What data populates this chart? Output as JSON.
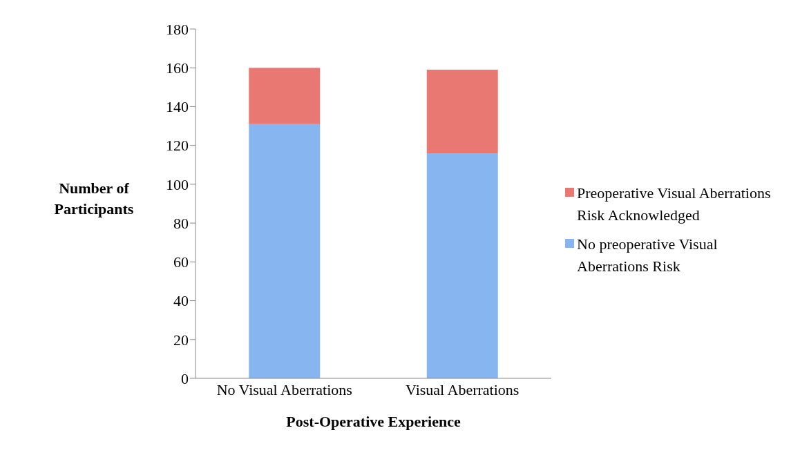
{
  "chart_data": {
    "type": "bar",
    "stacked": true,
    "xlabel": "Post-Operative Experience",
    "ylabel": "Number of Participants",
    "categories": [
      "No Visual Aberrations",
      "Visual Aberrations"
    ],
    "series": [
      {
        "name": "No preoperative Visual Aberrations Risk",
        "color": "#86b5f0",
        "values": [
          131,
          116
        ]
      },
      {
        "name": "Preoperative Visual Aberrations Risk Acknowledged",
        "color": "#e97872",
        "values": [
          29,
          43
        ]
      }
    ],
    "ylim": [
      0,
      180
    ],
    "yticks": [
      0,
      20,
      40,
      60,
      80,
      100,
      120,
      140,
      160,
      180
    ],
    "grid": false,
    "legend": "right"
  }
}
